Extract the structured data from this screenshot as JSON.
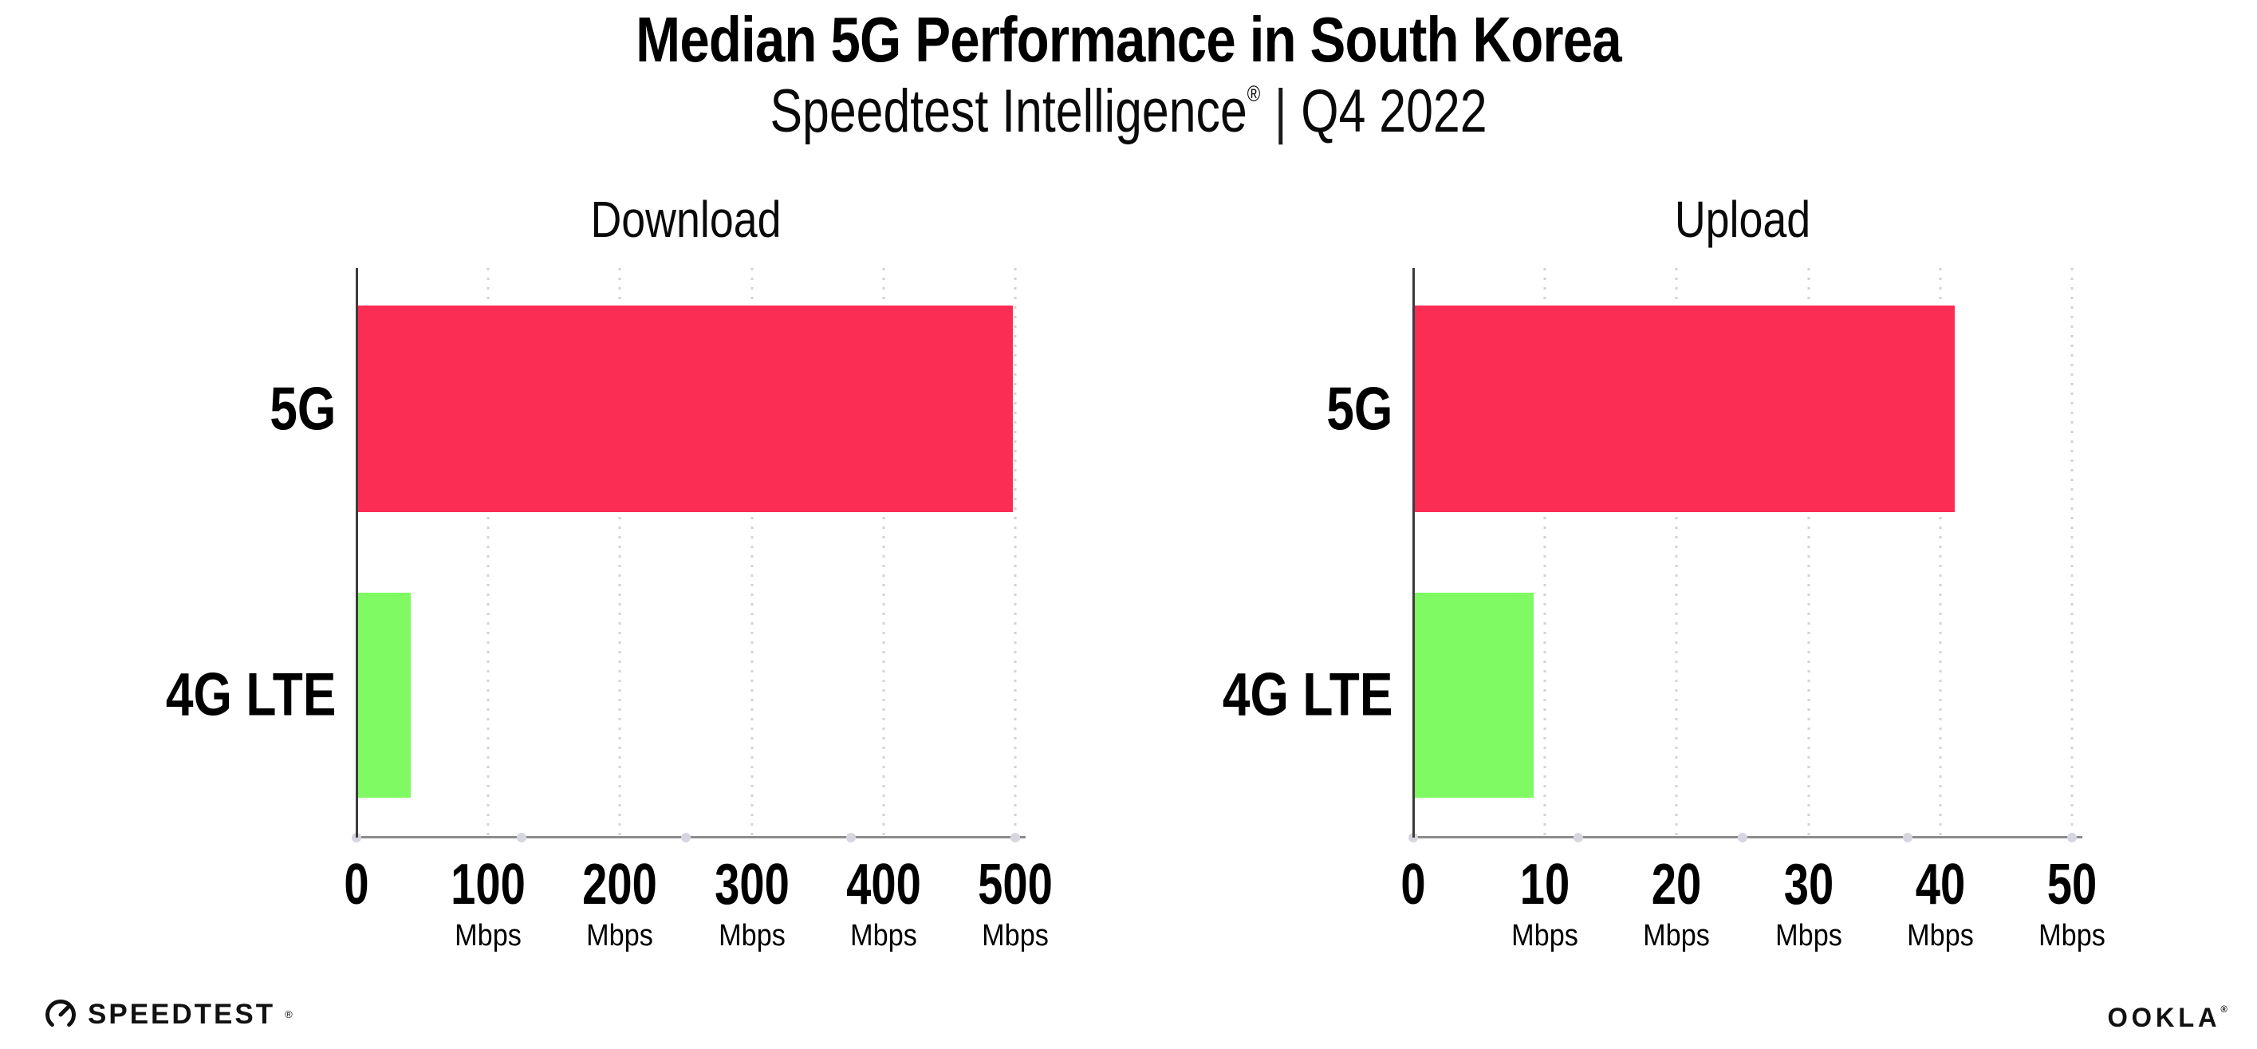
{
  "page": {
    "title": "Median 5G Performance in South Korea",
    "subtitle": {
      "brand": "Speedtest Intelligence",
      "registered_mark": "®",
      "divider": "|",
      "period": "Q4 2022"
    }
  },
  "chart_data": [
    {
      "type": "bar",
      "orientation": "horizontal",
      "title": "Download",
      "categories": [
        "5G",
        "4G LTE"
      ],
      "values": [
        497,
        40
      ],
      "value_unit": "Mbps",
      "xlim": [
        0,
        500
      ],
      "xticks": [
        0,
        100,
        200,
        300,
        400,
        500
      ],
      "xtick_unit": "Mbps",
      "bar_colors": [
        "#fc2d55",
        "#7ffa63"
      ],
      "grid": "dotted vertical gridlines at each tick",
      "legend": "none"
    },
    {
      "type": "bar",
      "orientation": "horizontal",
      "title": "Upload",
      "categories": [
        "5G",
        "4G LTE"
      ],
      "values": [
        41,
        9
      ],
      "value_unit": "Mbps",
      "xlim": [
        0,
        50
      ],
      "xticks": [
        0,
        10,
        20,
        30,
        40,
        50
      ],
      "xtick_unit": "Mbps",
      "bar_colors": [
        "#fc2d55",
        "#7ffa63"
      ],
      "grid": "dotted vertical gridlines at each tick",
      "legend": "none"
    }
  ],
  "footer": {
    "speedtest_logo_text": "SPEEDTEST",
    "speedtest_mark": "®",
    "ookla_logo_text": "OOKLA",
    "ookla_mark": "®"
  },
  "colors": {
    "bar_5g": "#fc2d55",
    "bar_4g_lte": "#7ffa63",
    "gridline": "#d2d2dc",
    "axis_x": "#8c8c8c",
    "axis_y": "#3c3c3c",
    "text": "#000000",
    "background": "#ffffff"
  }
}
